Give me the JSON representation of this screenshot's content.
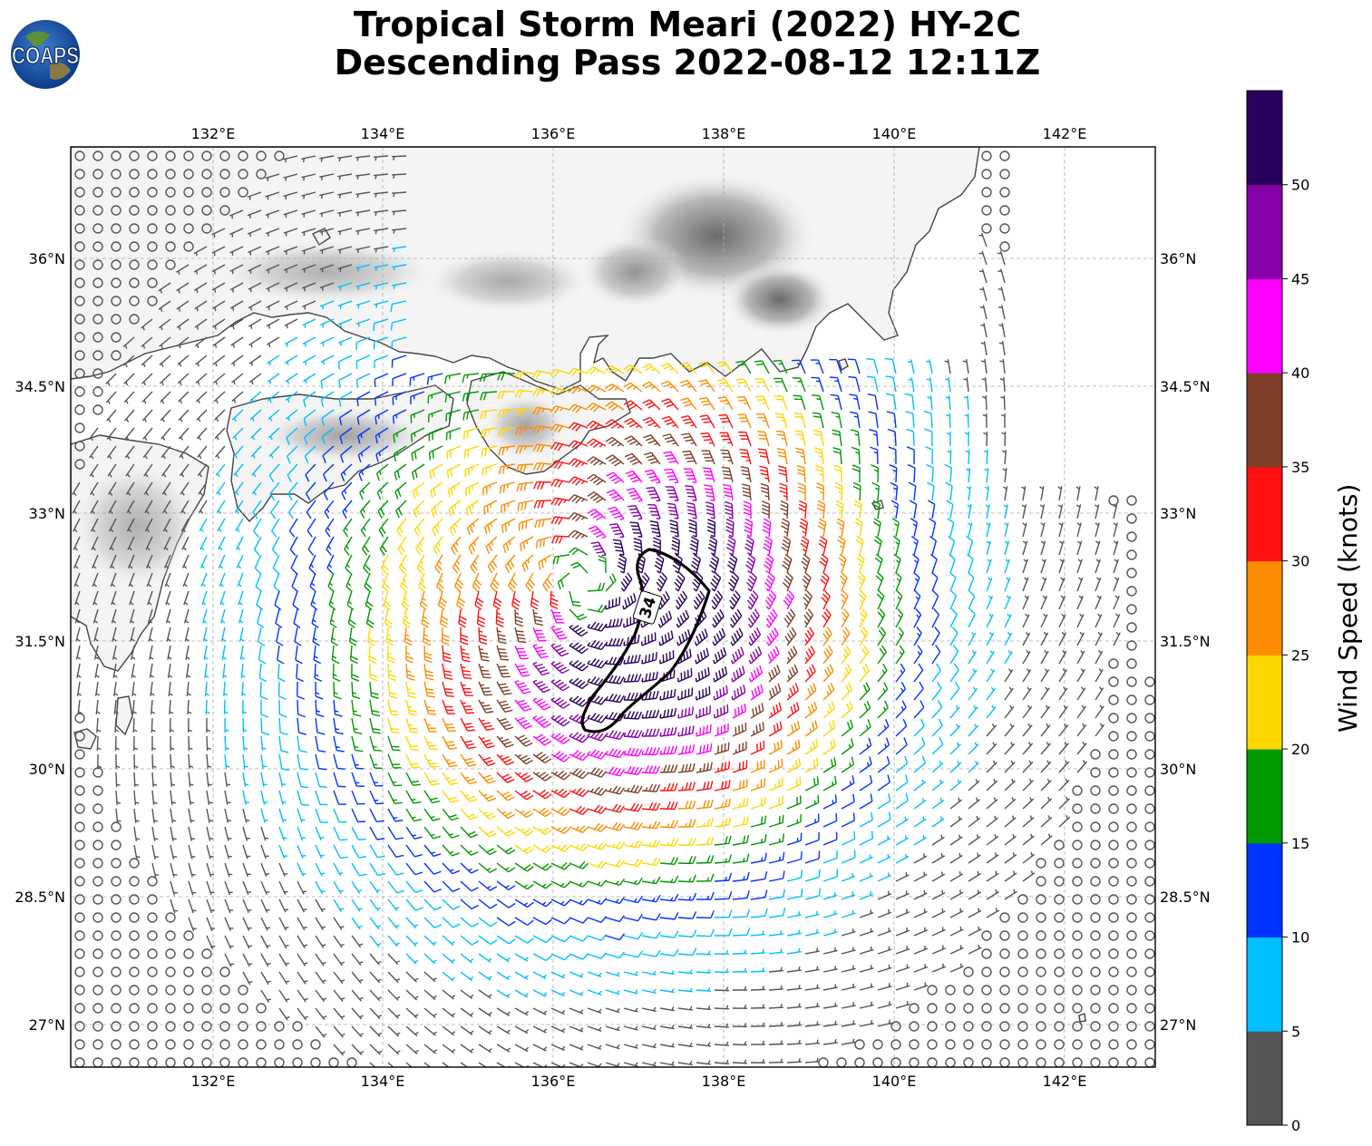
{
  "title": {
    "line1": "Tropical Storm Meari (2022) HY-2C",
    "line2": "Descending Pass 2022-08-12 12:11Z"
  },
  "logo": {
    "text": "COAPS"
  },
  "map": {
    "lon_ticks": [
      "132°E",
      "134°E",
      "136°E",
      "138°E",
      "140°E",
      "142°E"
    ],
    "lat_ticks": [
      "36°N",
      "34.5°N",
      "33°N",
      "31.5°N",
      "30°N",
      "28.5°N",
      "27°N"
    ],
    "contour_label": "34",
    "storm_center": {
      "lon": 136.3,
      "lat": 32.2
    },
    "extent": {
      "lon": [
        130.25,
        143.05
      ],
      "lat": [
        26.5,
        37.3
      ]
    }
  },
  "colorbar": {
    "label": "Wind Speed (knots)",
    "ticks": [
      "0",
      "5",
      "10",
      "15",
      "20",
      "25",
      "30",
      "35",
      "40",
      "45",
      "50"
    ],
    "bins": [
      {
        "range": "0-5",
        "color": "#555555"
      },
      {
        "range": "5-10",
        "color": "#00bfff"
      },
      {
        "range": "10-15",
        "color": "#0033ff"
      },
      {
        "range": "15-20",
        "color": "#009900"
      },
      {
        "range": "20-25",
        "color": "#ffd700"
      },
      {
        "range": "25-30",
        "color": "#ff8c00"
      },
      {
        "range": "30-35",
        "color": "#ff1111"
      },
      {
        "range": "35-40",
        "color": "#7f3f2a"
      },
      {
        "range": "40-45",
        "color": "#ff00ff"
      },
      {
        "range": "45-50",
        "color": "#8800aa"
      },
      {
        "range": "50-55",
        "color": "#2a005f"
      }
    ]
  }
}
